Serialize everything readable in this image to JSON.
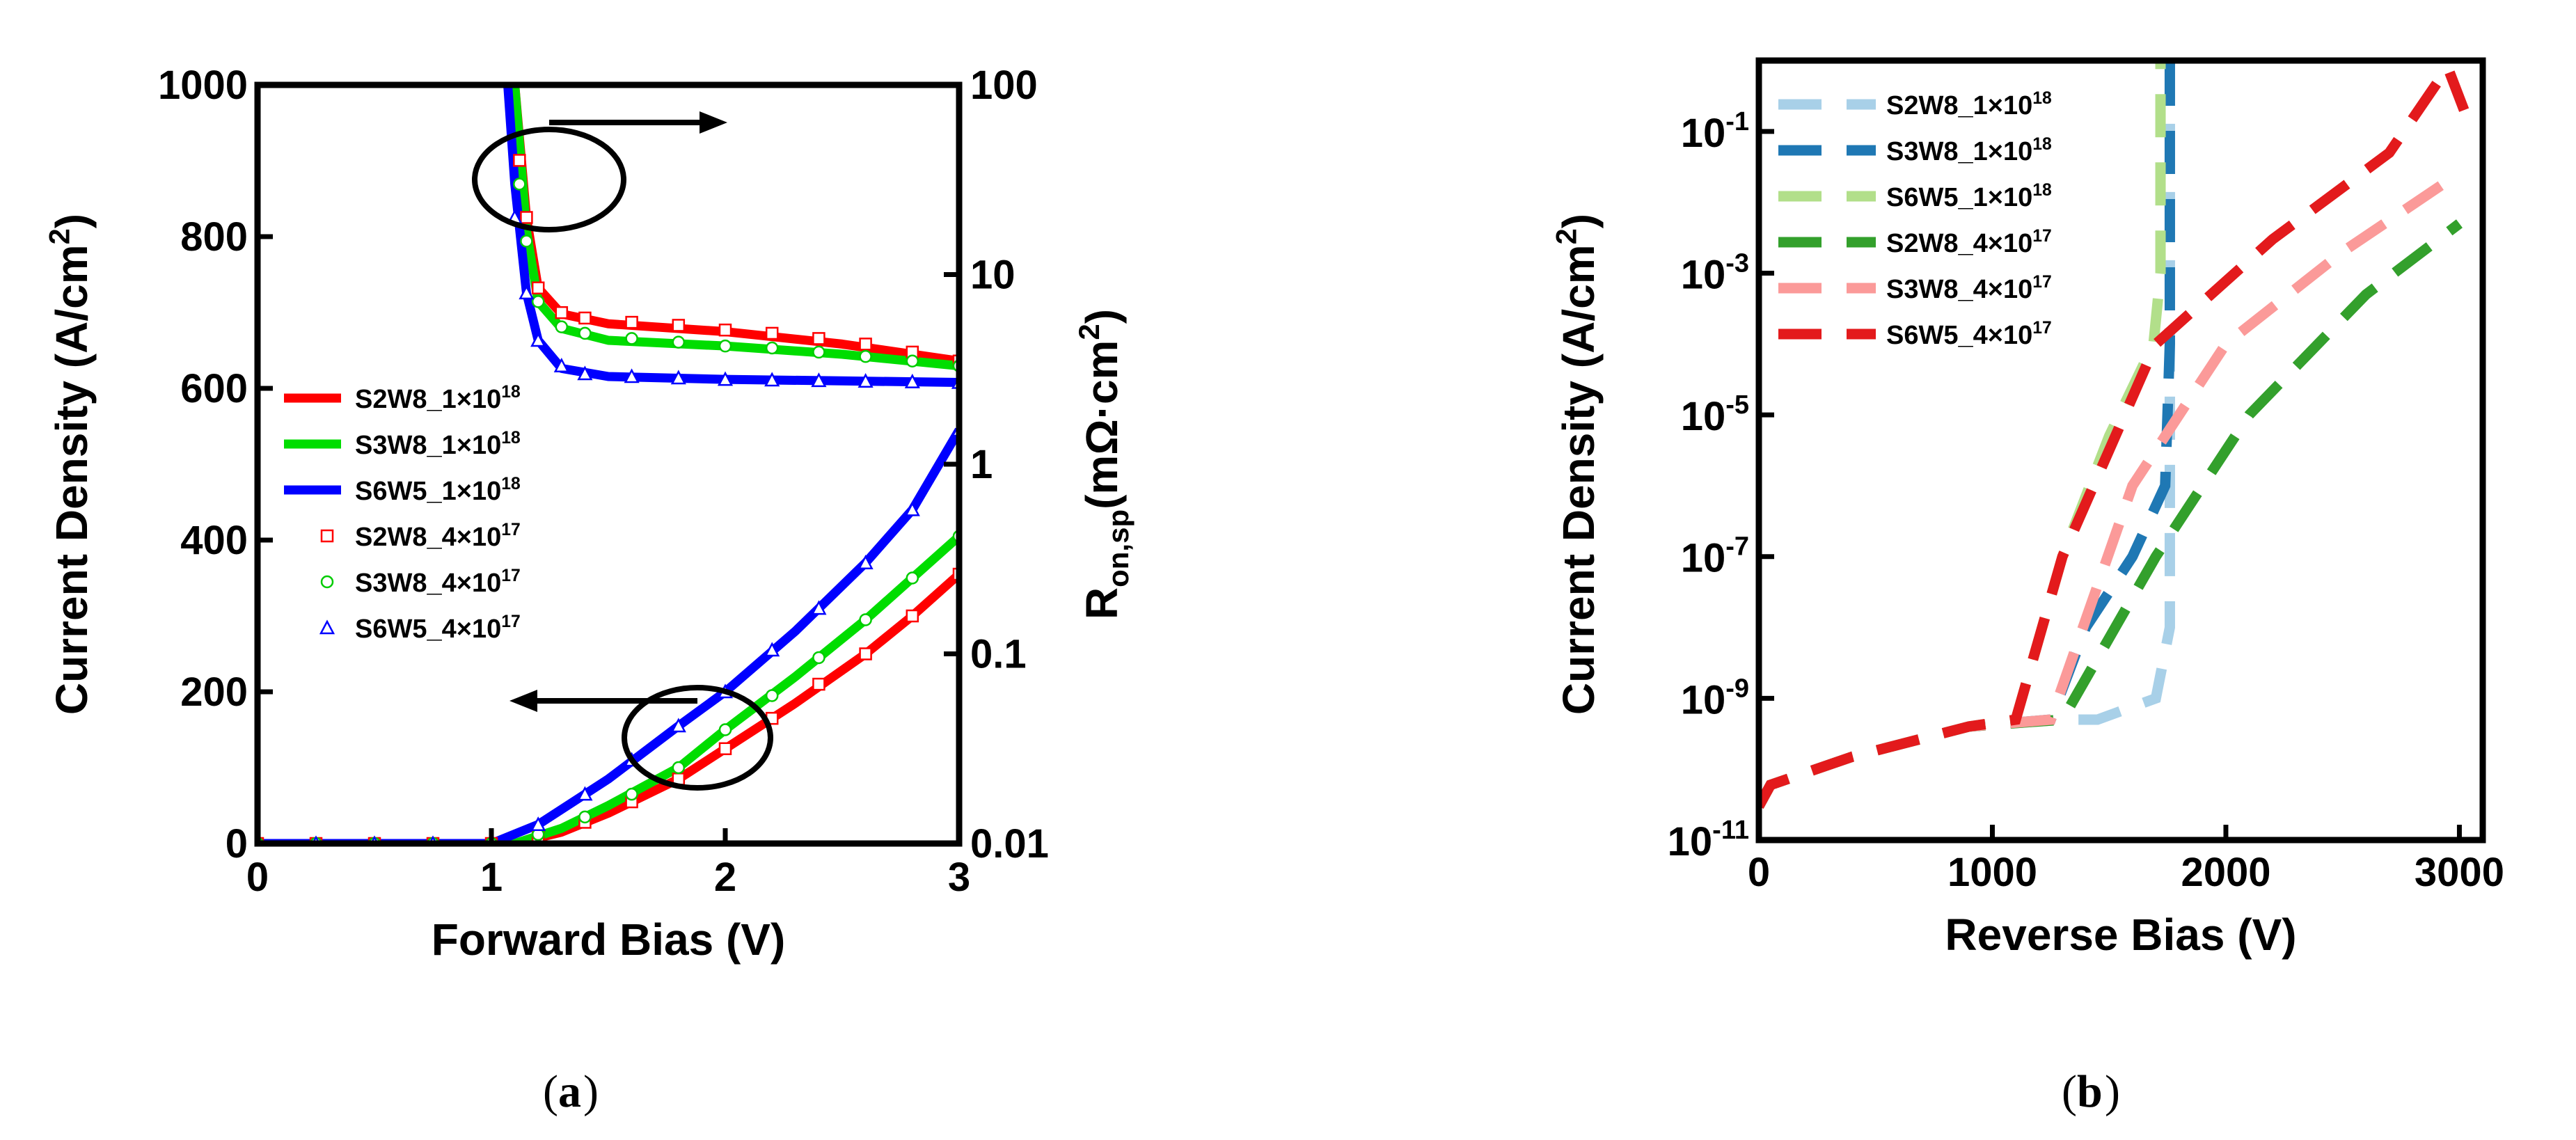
{
  "chart_data": [
    {
      "type": "line",
      "panel_label": "a",
      "xlabel": "Forward Bias (V)",
      "ylabel_left": "Current Density (A/cm²)",
      "ylabel_left_parts": {
        "main": "Current Density (A/cm",
        "sup": "2",
        "tail": ")"
      },
      "ylabel_right_parts": {
        "main": "R",
        "sub": "on,sp",
        "mid": "(mΩ·cm",
        "sup": "2",
        "tail": ")"
      },
      "xlim": [
        0,
        3
      ],
      "ylim_left": [
        0,
        1000
      ],
      "ylim_right": [
        0.01,
        100
      ],
      "y_right_scale": "log",
      "xticks": [
        "0",
        "1",
        "2",
        "3"
      ],
      "yticks_left": [
        "0",
        "200",
        "400",
        "600",
        "800",
        "1000"
      ],
      "yticks_right": [
        "0.01",
        "0.1",
        "1",
        "10",
        "100"
      ],
      "legend_position": "center-left",
      "annotations": [
        "arrow from circled curves pointing right (to R_on,sp axis)",
        "arrow from circled curves pointing left (to current density axis)"
      ],
      "series": [
        {
          "name": "S2W8_1×10¹⁸",
          "label": "S2W8_1×10",
          "exp": "18",
          "kind": "line",
          "color": "#ff0000",
          "axis": "both",
          "jv": [
            [
              0,
              0
            ],
            [
              1.1,
              0
            ],
            [
              1.3,
              15
            ],
            [
              1.5,
              40
            ],
            [
              1.8,
              85
            ],
            [
              2.0,
              125
            ],
            [
              2.3,
              185
            ],
            [
              2.6,
              250
            ],
            [
              2.8,
              300
            ],
            [
              3.0,
              355
            ]
          ],
          "ron": [
            [
              1.1,
              100
            ],
            [
              1.15,
              20
            ],
            [
              1.2,
              8.5
            ],
            [
              1.3,
              6.2
            ],
            [
              1.5,
              5.5
            ],
            [
              2.0,
              5.0
            ],
            [
              2.5,
              4.3
            ],
            [
              3.0,
              3.5
            ]
          ]
        },
        {
          "name": "S3W8_1×10¹⁸",
          "label": "S3W8_1×10",
          "exp": "18",
          "kind": "line",
          "color": "#00dd00",
          "axis": "both",
          "jv": [
            [
              0,
              0
            ],
            [
              1.1,
              0
            ],
            [
              1.3,
              20
            ],
            [
              1.5,
              50
            ],
            [
              1.8,
              100
            ],
            [
              2.0,
              150
            ],
            [
              2.3,
              220
            ],
            [
              2.6,
              295
            ],
            [
              2.8,
              350
            ],
            [
              3.0,
              405
            ]
          ],
          "ron": [
            [
              1.1,
              100
            ],
            [
              1.15,
              17
            ],
            [
              1.2,
              7.2
            ],
            [
              1.3,
              5.2
            ],
            [
              1.5,
              4.5
            ],
            [
              2.0,
              4.2
            ],
            [
              2.5,
              3.8
            ],
            [
              3.0,
              3.3
            ]
          ]
        },
        {
          "name": "S6W5_1×10¹⁸",
          "label": "S6W5_1×10",
          "exp": "18",
          "kind": "line",
          "color": "#0000ff",
          "axis": "both",
          "jv": [
            [
              0,
              0
            ],
            [
              1.0,
              0
            ],
            [
              1.2,
              25
            ],
            [
              1.5,
              85
            ],
            [
              1.8,
              155
            ],
            [
              2.0,
              200
            ],
            [
              2.3,
              280
            ],
            [
              2.6,
              370
            ],
            [
              2.8,
              440
            ],
            [
              3.0,
              545
            ]
          ],
          "ron": [
            [
              1.07,
              100
            ],
            [
              1.1,
              30
            ],
            [
              1.15,
              8
            ],
            [
              1.2,
              4.5
            ],
            [
              1.3,
              3.2
            ],
            [
              1.5,
              2.9
            ],
            [
              2.0,
              2.8
            ],
            [
              2.5,
              2.75
            ],
            [
              3.0,
              2.7
            ]
          ]
        },
        {
          "name": "S2W8_4×10¹⁷",
          "label": "S2W8_4×10",
          "exp": "17",
          "kind": "marker",
          "marker": "square",
          "color": "#ff0000",
          "axis": "both",
          "jv": [
            [
              0,
              0
            ],
            [
              0.25,
              0
            ],
            [
              0.5,
              0
            ],
            [
              0.75,
              0
            ],
            [
              1.0,
              0
            ],
            [
              1.2,
              8
            ],
            [
              1.4,
              28
            ],
            [
              1.6,
              55
            ],
            [
              1.8,
              85
            ],
            [
              2.0,
              125
            ],
            [
              2.2,
              165
            ],
            [
              2.4,
              210
            ],
            [
              2.6,
              250
            ],
            [
              2.8,
              300
            ],
            [
              3.0,
              355
            ]
          ],
          "ron": [
            [
              1.12,
              40
            ],
            [
              1.15,
              20
            ],
            [
              1.2,
              8.5
            ],
            [
              1.3,
              6.3
            ],
            [
              1.4,
              5.9
            ],
            [
              1.6,
              5.6
            ],
            [
              1.8,
              5.4
            ],
            [
              2.0,
              5.1
            ],
            [
              2.2,
              4.9
            ],
            [
              2.4,
              4.6
            ],
            [
              2.6,
              4.3
            ],
            [
              2.8,
              3.9
            ],
            [
              3.0,
              3.5
            ]
          ]
        },
        {
          "name": "S3W8_4×10¹⁷",
          "label": "S3W8_4×10",
          "exp": "17",
          "kind": "marker",
          "marker": "circle",
          "color": "#00cc00",
          "axis": "both",
          "jv": [
            [
              0,
              0
            ],
            [
              0.25,
              0
            ],
            [
              0.5,
              0
            ],
            [
              0.75,
              0
            ],
            [
              1.0,
              0
            ],
            [
              1.2,
              12
            ],
            [
              1.4,
              35
            ],
            [
              1.6,
              65
            ],
            [
              1.8,
              100
            ],
            [
              2.0,
              150
            ],
            [
              2.2,
              195
            ],
            [
              2.4,
              245
            ],
            [
              2.6,
              295
            ],
            [
              2.8,
              350
            ],
            [
              3.0,
              405
            ]
          ],
          "ron": [
            [
              1.12,
              30
            ],
            [
              1.15,
              15
            ],
            [
              1.2,
              7.2
            ],
            [
              1.3,
              5.3
            ],
            [
              1.4,
              4.9
            ],
            [
              1.6,
              4.6
            ],
            [
              1.8,
              4.4
            ],
            [
              2.0,
              4.2
            ],
            [
              2.2,
              4.1
            ],
            [
              2.4,
              3.9
            ],
            [
              2.6,
              3.7
            ],
            [
              2.8,
              3.5
            ],
            [
              3.0,
              3.3
            ]
          ]
        },
        {
          "name": "S6W5_4×10¹⁷",
          "label": "S6W5_4×10",
          "exp": "17",
          "kind": "marker",
          "marker": "triangle",
          "color": "#0000ff",
          "axis": "both",
          "jv": [
            [
              0,
              0
            ],
            [
              0.25,
              0
            ],
            [
              0.5,
              0
            ],
            [
              0.75,
              0
            ],
            [
              1.0,
              0
            ],
            [
              1.2,
              25
            ],
            [
              1.4,
              65
            ],
            [
              1.6,
              110
            ],
            [
              1.8,
              155
            ],
            [
              2.0,
              200
            ],
            [
              2.2,
              255
            ],
            [
              2.4,
              310
            ],
            [
              2.6,
              370
            ],
            [
              2.8,
              440
            ],
            [
              3.0,
              545
            ]
          ],
          "ron": [
            [
              1.1,
              20
            ],
            [
              1.15,
              8
            ],
            [
              1.2,
              4.5
            ],
            [
              1.3,
              3.3
            ],
            [
              1.4,
              3.0
            ],
            [
              1.6,
              2.9
            ],
            [
              1.8,
              2.85
            ],
            [
              2.0,
              2.8
            ],
            [
              2.2,
              2.78
            ],
            [
              2.4,
              2.76
            ],
            [
              2.6,
              2.74
            ],
            [
              2.8,
              2.72
            ],
            [
              3.0,
              2.7
            ]
          ]
        }
      ]
    },
    {
      "type": "line",
      "panel_label": "b",
      "xlabel": "Reverse Bias (V)",
      "ylabel": "Current Density (A/cm²)",
      "ylabel_parts": {
        "main": "Current Density (A/cm",
        "sup": "2",
        "tail": ")"
      },
      "xlim": [
        0,
        3100
      ],
      "ylim": [
        1e-11,
        1
      ],
      "y_scale": "log",
      "xticks": [
        {
          "v": 0,
          "t": "0"
        },
        {
          "v": 1000,
          "t": "1000"
        },
        {
          "v": 2000,
          "t": "2000"
        },
        {
          "v": 3000,
          "t": "3000"
        }
      ],
      "yticks": [
        {
          "e": -11,
          "t": "-11"
        },
        {
          "e": -9,
          "t": "-9"
        },
        {
          "e": -7,
          "t": "-7"
        },
        {
          "e": -5,
          "t": "-5"
        },
        {
          "e": -3,
          "t": "-3"
        },
        {
          "e": -1,
          "t": "-1"
        }
      ],
      "legend_position": "top-left",
      "series": [
        {
          "name": "S2W8_1×10¹⁸",
          "label": "S2W8_1×10",
          "exp": "18",
          "color": "#a8d0e8",
          "points": [
            [
              0,
              3e-11
            ],
            [
              50,
              6e-11
            ],
            [
              400,
              1.5e-10
            ],
            [
              900,
              4e-10
            ],
            [
              1300,
              5e-10
            ],
            [
              1450,
              5e-10
            ],
            [
              1700,
              1e-09
            ],
            [
              1760,
              1e-08
            ],
            [
              1760,
              1e-06
            ],
            [
              1760,
              0.001
            ],
            [
              1760,
              1
            ]
          ]
        },
        {
          "name": "S3W8_1×10¹⁸",
          "label": "S3W8_1×10",
          "exp": "18",
          "color": "#1f78b4",
          "points": [
            [
              0,
              3e-11
            ],
            [
              50,
              6e-11
            ],
            [
              400,
              1.5e-10
            ],
            [
              900,
              4e-10
            ],
            [
              1250,
              5e-10
            ],
            [
              1400,
              1e-08
            ],
            [
              1600,
              1e-07
            ],
            [
              1740,
              1e-06
            ],
            [
              1760,
              0.0001
            ],
            [
              1760,
              1
            ]
          ]
        },
        {
          "name": "S6W5_1×10¹⁸",
          "label": "S6W5_1×10",
          "exp": "18",
          "color": "#b2df8a",
          "points": [
            [
              0,
              3e-11
            ],
            [
              50,
              6e-11
            ],
            [
              400,
              1.5e-10
            ],
            [
              900,
              4e-10
            ],
            [
              1100,
              5e-10
            ],
            [
              1300,
              1e-07
            ],
            [
              1500,
              5e-06
            ],
            [
              1690,
              0.0001
            ],
            [
              1720,
              0.001
            ],
            [
              1720,
              1
            ]
          ]
        },
        {
          "name": "S2W8_4×10¹⁷",
          "label": "S2W8_4×10",
          "exp": "17",
          "color": "#33a02c",
          "points": [
            [
              0,
              3e-11
            ],
            [
              50,
              6e-11
            ],
            [
              400,
              1.5e-10
            ],
            [
              900,
              4e-10
            ],
            [
              1300,
              5e-10
            ],
            [
              1700,
              1e-07
            ],
            [
              2100,
              1e-05
            ],
            [
              2600,
              0.0005
            ],
            [
              3000,
              0.005
            ]
          ]
        },
        {
          "name": "S3W8_4×10¹⁷",
          "label": "S3W8_4×10",
          "exp": "17",
          "color": "#fb9a99",
          "points": [
            [
              0,
              3e-11
            ],
            [
              50,
              6e-11
            ],
            [
              400,
              1.5e-10
            ],
            [
              900,
              4e-10
            ],
            [
              1250,
              5e-10
            ],
            [
              1600,
              1e-06
            ],
            [
              2000,
              0.0001
            ],
            [
              2500,
              0.002
            ],
            [
              2950,
              0.02
            ]
          ]
        },
        {
          "name": "S6W5_4×10¹⁷",
          "label": "S6W5_4×10",
          "exp": "17",
          "color": "#e31a1c",
          "points": [
            [
              0,
              3e-11
            ],
            [
              50,
              6e-11
            ],
            [
              400,
              1.5e-10
            ],
            [
              900,
              4e-10
            ],
            [
              1100,
              5e-10
            ],
            [
              1300,
              1e-07
            ],
            [
              1700,
              0.0001
            ],
            [
              2200,
              0.003
            ],
            [
              2700,
              0.05
            ],
            [
              2950,
              0.8
            ],
            [
              3020,
              0.2
            ]
          ]
        }
      ]
    }
  ]
}
